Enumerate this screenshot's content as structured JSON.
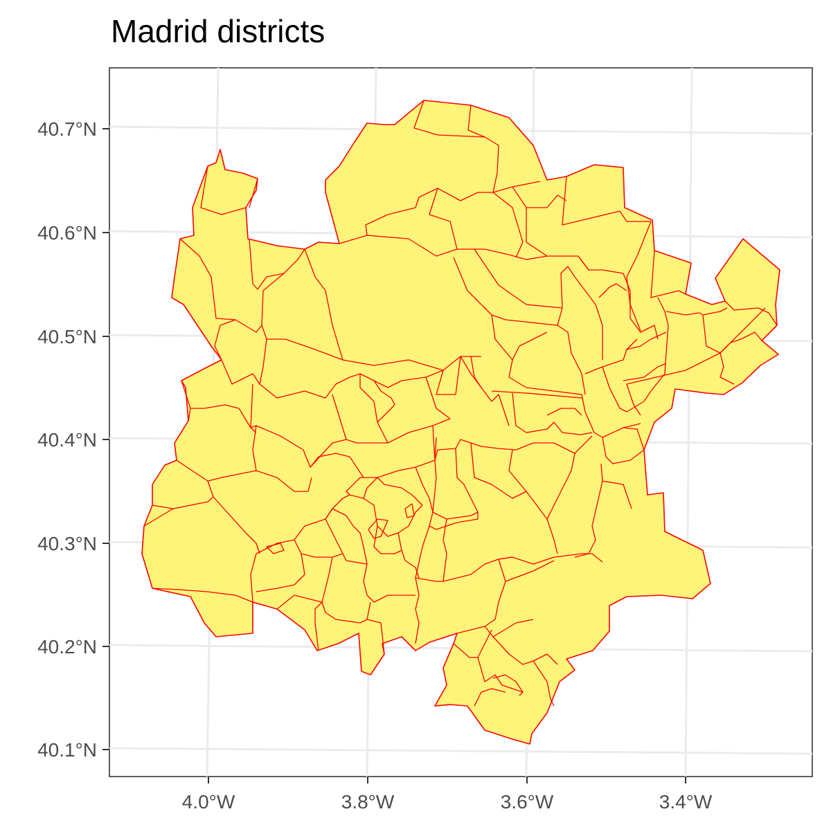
{
  "title": "Madrid districts",
  "axes": {
    "y_ticks": [
      "40.7°N",
      "40.6°N",
      "40.5°N",
      "40.4°N",
      "40.3°N",
      "40.2°N",
      "40.1°N"
    ],
    "x_ticks": [
      "4.0°W",
      "3.8°W",
      "3.6°W",
      "3.4°W"
    ]
  },
  "style": {
    "fill": "#FFF47A",
    "stroke": "#FF0000",
    "grid": "#EBEBEB",
    "panel_border": "#333333"
  },
  "icon": "map-of-madrid-districts"
}
